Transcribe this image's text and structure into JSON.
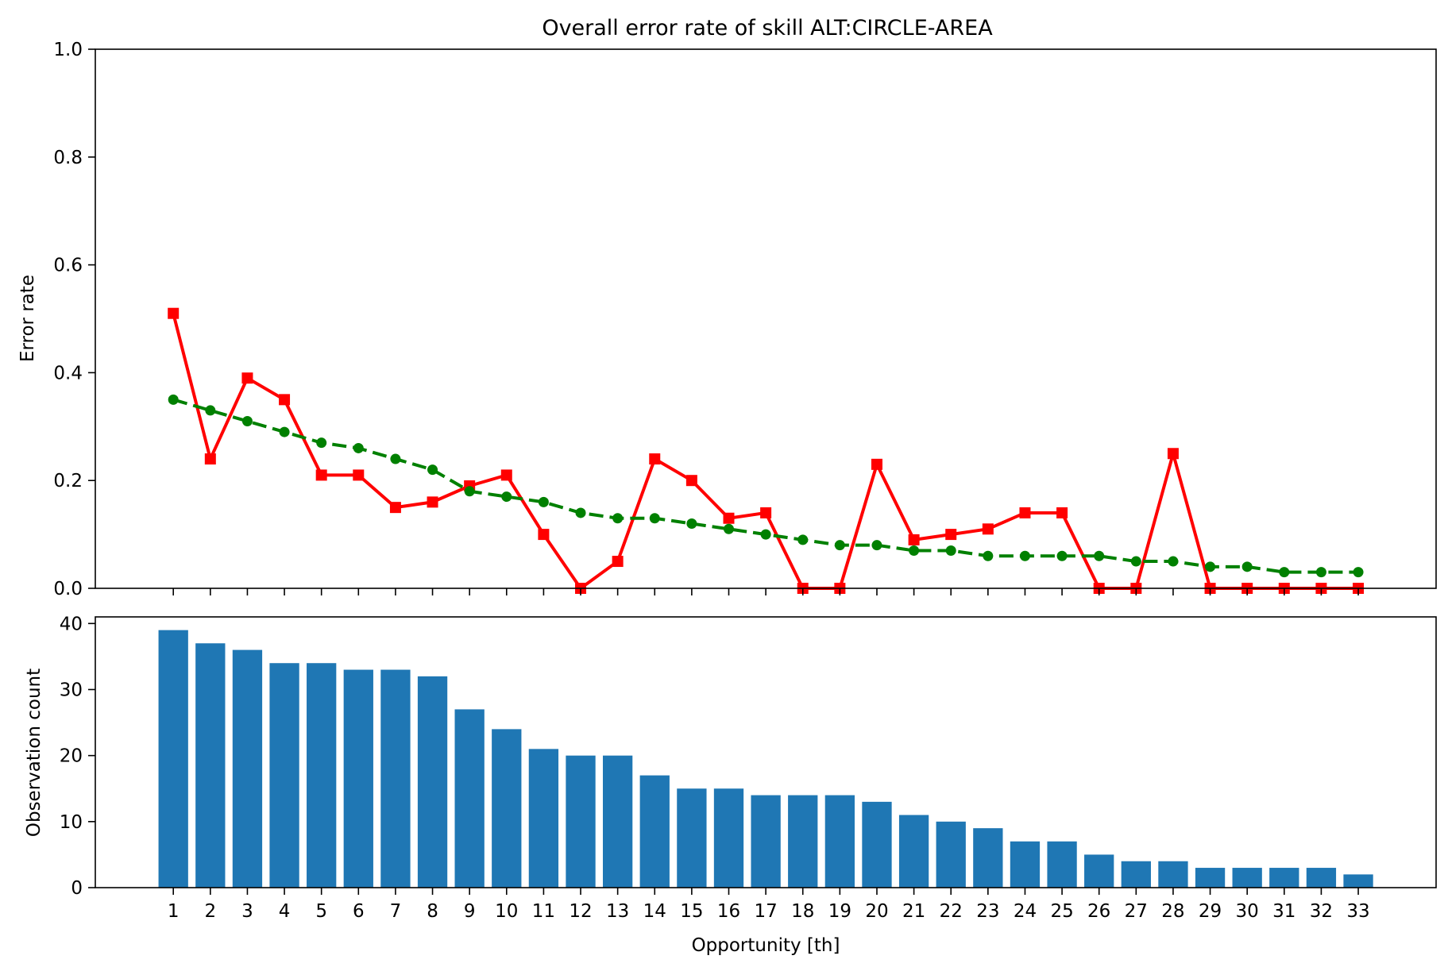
{
  "chart_data": [
    {
      "type": "line",
      "title": "Overall error rate of skill ALT:CIRCLE-AREA",
      "xlabel": "",
      "ylabel": "Error rate",
      "ylim": [
        0,
        1.0
      ],
      "yticks": [
        "0.0",
        "0.2",
        "0.4",
        "0.6",
        "0.8",
        "1.0"
      ],
      "x": [
        1,
        2,
        3,
        4,
        5,
        6,
        7,
        8,
        9,
        10,
        11,
        12,
        13,
        14,
        15,
        16,
        17,
        18,
        19,
        20,
        21,
        22,
        23,
        24,
        25,
        26,
        27,
        28,
        29,
        30,
        31,
        32,
        33
      ],
      "grid": false,
      "series": [
        {
          "color": "#ff0000",
          "line": "solid",
          "marker": "square",
          "values": [
            0.51,
            0.24,
            0.39,
            0.35,
            0.21,
            0.21,
            0.15,
            0.16,
            0.19,
            0.21,
            0.1,
            0.0,
            0.05,
            0.24,
            0.2,
            0.13,
            0.14,
            0.0,
            0.0,
            0.23,
            0.09,
            0.1,
            0.11,
            0.14,
            0.14,
            0.0,
            0.0,
            0.25,
            0.0,
            0.0,
            0.0,
            0.0,
            0.0
          ]
        },
        {
          "color": "#008000",
          "line": "dashed",
          "marker": "circle",
          "values": [
            0.35,
            0.33,
            0.31,
            0.29,
            0.27,
            0.26,
            0.24,
            0.22,
            0.18,
            0.17,
            0.16,
            0.14,
            0.13,
            0.13,
            0.12,
            0.11,
            0.1,
            0.09,
            0.08,
            0.08,
            0.07,
            0.07,
            0.06,
            0.06,
            0.06,
            0.06,
            0.05,
            0.05,
            0.04,
            0.04,
            0.03,
            0.03,
            0.03
          ]
        }
      ]
    },
    {
      "type": "bar",
      "xlabel": "Opportunity [th]",
      "ylabel": "Observation count",
      "ylim": [
        0,
        41
      ],
      "yticks": [
        "0",
        "10",
        "20",
        "30",
        "40"
      ],
      "categories": [
        "1",
        "2",
        "3",
        "4",
        "5",
        "6",
        "7",
        "8",
        "9",
        "10",
        "11",
        "12",
        "13",
        "14",
        "15",
        "16",
        "17",
        "18",
        "19",
        "20",
        "21",
        "22",
        "23",
        "24",
        "25",
        "26",
        "27",
        "28",
        "29",
        "30",
        "31",
        "32",
        "33"
      ],
      "color": "#1f77b4",
      "grid": false,
      "values": [
        39,
        37,
        36,
        34,
        34,
        33,
        33,
        32,
        27,
        24,
        21,
        20,
        20,
        17,
        15,
        15,
        14,
        14,
        14,
        13,
        11,
        10,
        9,
        7,
        7,
        5,
        4,
        4,
        3,
        3,
        3,
        3,
        2
      ]
    }
  ]
}
